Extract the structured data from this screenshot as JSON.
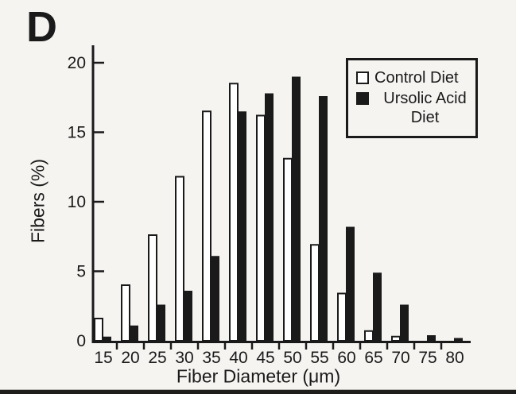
{
  "figure": {
    "panel_label": "D",
    "background": "#f6f4f1",
    "ink": "#1a1a1a"
  },
  "legend": {
    "items": [
      {
        "label": "Control Diet",
        "swatch_icon": "white-square-icon",
        "color": "#ffffff"
      },
      {
        "label": "Ursolic Acid Diet",
        "swatch_icon": "black-square-icon",
        "color": "#1a1a1a"
      }
    ]
  },
  "chart_data": {
    "type": "bar",
    "title": "",
    "xlabel": "Fiber Diameter (μm)",
    "ylabel": "Fibers (%)",
    "categories": [
      15,
      20,
      25,
      30,
      35,
      40,
      45,
      50,
      55,
      60,
      65,
      70,
      75,
      80
    ],
    "series": [
      {
        "name": "Control Diet",
        "color": "#ffffff",
        "values": [
          1.6,
          4.0,
          7.6,
          11.8,
          16.5,
          18.5,
          16.2,
          13.1,
          6.9,
          3.4,
          0.7,
          0.3,
          0,
          0
        ]
      },
      {
        "name": "Ursolic Acid Diet",
        "color": "#1a1a1a",
        "values": [
          0.3,
          1.1,
          2.6,
          3.6,
          6.1,
          16.5,
          17.8,
          19.0,
          17.6,
          8.2,
          4.9,
          2.6,
          0.4,
          0.2
        ]
      }
    ],
    "yticks": [
      0,
      5,
      10,
      15,
      20
    ],
    "ylim": [
      0,
      21
    ],
    "xlim_categories": "15 to 80 step 5",
    "grid": false,
    "legend_position": "top-right"
  }
}
